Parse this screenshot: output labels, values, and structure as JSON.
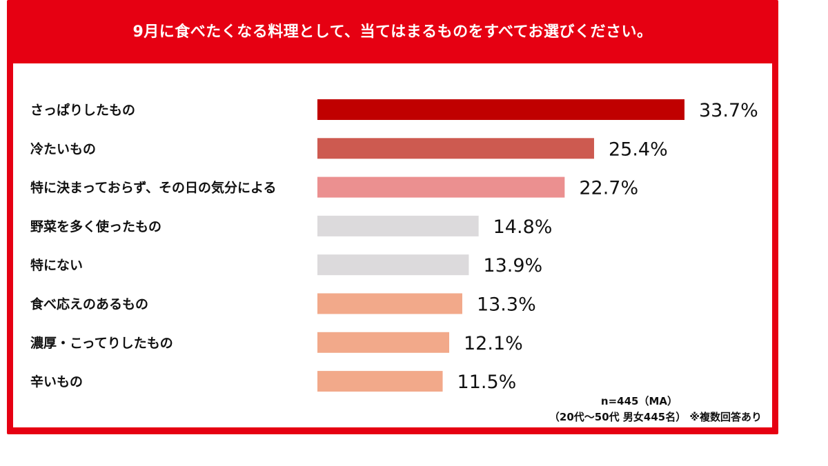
{
  "chart_data": {
    "type": "bar",
    "orientation": "horizontal",
    "title": "9月に食べたくなる料理として、当てはまるものをすべてお選びください。",
    "categories": [
      "さっぱりしたもの",
      "冷たいもの",
      "特に決まっておらず、その日の気分による",
      "野菜を多く使ったもの",
      "特にない",
      "食べ応えのあるもの",
      "濃厚・こってりしたもの",
      "辛いもの"
    ],
    "values": [
      33.7,
      25.4,
      22.7,
      14.8,
      13.9,
      13.3,
      12.1,
      11.5
    ],
    "value_labels": [
      "33.7%",
      "25.4%",
      "22.7%",
      "14.8%",
      "13.9%",
      "13.3%",
      "12.1%",
      "11.5%"
    ],
    "bar_colors": [
      "#c00000",
      "#cd5a50",
      "#eb9090",
      "#dcdadc",
      "#dcdadc",
      "#f2a98a",
      "#f2a98a",
      "#f2a98a"
    ],
    "xlim": [
      0,
      33.7
    ],
    "grid": false,
    "legend": "none"
  },
  "notes": {
    "n_label": "n=445（MA）",
    "sample_label": "（20代～50代 男女445名） ※複数回答あり"
  },
  "colors": {
    "frame": "#e60012",
    "header_text": "#ffffff"
  }
}
